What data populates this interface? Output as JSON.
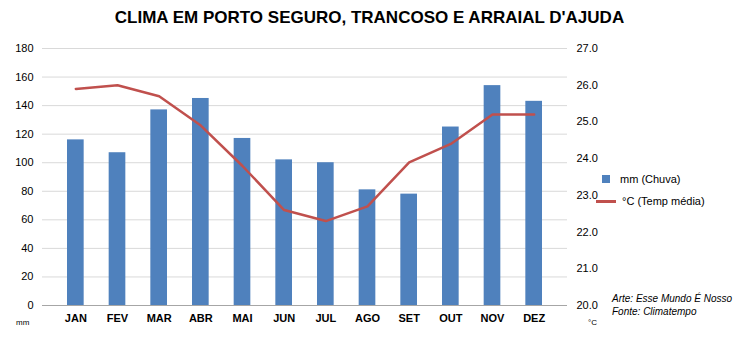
{
  "chart_data": {
    "type": "bar",
    "title": "CLIMA EM PORTO SEGURO, TRANCOSO E ARRAIAL D'AJUDA",
    "categories": [
      "JAN",
      "FEV",
      "MAR",
      "ABR",
      "MAI",
      "JUN",
      "JUL",
      "AGO",
      "SET",
      "OUT",
      "NOV",
      "DEZ"
    ],
    "series": [
      {
        "name": "mm (Chuva)",
        "type": "bar",
        "color": "#4F81BD",
        "values": [
          116,
          107,
          137,
          145,
          117,
          102,
          100,
          81,
          78,
          125,
          154,
          143
        ]
      },
      {
        "name": "°C (Temp média)",
        "type": "line",
        "color": "#C0504D",
        "axis": "y2",
        "values": [
          25.9,
          26.0,
          25.7,
          24.9,
          23.8,
          22.6,
          22.3,
          22.7,
          23.9,
          24.4,
          25.2,
          25.2
        ]
      }
    ],
    "ylim": [
      0,
      180
    ],
    "yticks": [
      0,
      20,
      40,
      60,
      80,
      100,
      120,
      140,
      160,
      180
    ],
    "y2lim": [
      20,
      27
    ],
    "y2ticks": [
      20,
      21,
      22,
      23,
      24,
      25,
      26,
      27
    ],
    "ylabel": "mm",
    "y2label": "°C",
    "grid": true,
    "legend": "right",
    "annotations": [
      "Arte: Esse Mundo É Nosso",
      "Fonte: Climatempo"
    ]
  }
}
